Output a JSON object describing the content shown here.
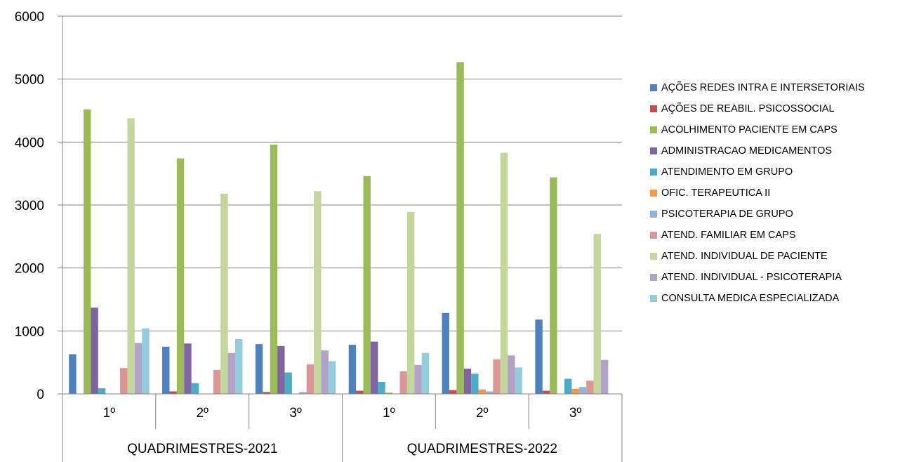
{
  "chart_data": {
    "type": "bar",
    "ylim": [
      0,
      6000
    ],
    "yticks": [
      "0",
      "1000",
      "2000",
      "3000",
      "4000",
      "5000",
      "6000"
    ],
    "grid": true,
    "legend_position": "right",
    "groups": [
      {
        "label": "QUADRIMESTRES-2021",
        "categories": [
          "1º",
          "2º",
          "3º"
        ]
      },
      {
        "label": "QUADRIMESTRES-2022",
        "categories": [
          "1º",
          "2º",
          "3º"
        ]
      }
    ],
    "series": [
      {
        "name": "AÇÕES REDES INTRA E INTERSETORIAIS",
        "color": "#4F81BD",
        "values": [
          630,
          750,
          790,
          780,
          1285,
          1180
        ]
      },
      {
        "name": "AÇÕES DE REABIL. PSICOSSOCIAL",
        "color": "#C0504D",
        "values": [
          0,
          40,
          30,
          50,
          60,
          50
        ]
      },
      {
        "name": "ACOLHIMENTO PACIENTE EM CAPS",
        "color": "#9BBB59",
        "values": [
          4520,
          3740,
          3960,
          3460,
          5270,
          3440
        ]
      },
      {
        "name": "ADMINISTRACAO MEDICAMENTOS",
        "color": "#8064A2",
        "values": [
          1370,
          800,
          760,
          830,
          400,
          0
        ]
      },
      {
        "name": "ATENDIMENTO EM GRUPO",
        "color": "#4BACC6",
        "values": [
          90,
          170,
          340,
          190,
          320,
          240
        ]
      },
      {
        "name": "OFIC. TERAPEUTICA II",
        "color": "#F79646",
        "values": [
          0,
          0,
          0,
          20,
          70,
          80
        ]
      },
      {
        "name": "PSICOTERAPIA DE GRUPO",
        "color": "#95B3D7",
        "values": [
          0,
          0,
          30,
          0,
          40,
          110
        ]
      },
      {
        "name": "ATEND. FAMILIAR EM CAPS",
        "color": "#DA9694",
        "values": [
          410,
          380,
          470,
          360,
          550,
          210
        ]
      },
      {
        "name": "ATEND. INDIVIDUAL DE PACIENTE",
        "color": "#C3D69B",
        "values": [
          4380,
          3180,
          3220,
          2890,
          3830,
          2540
        ]
      },
      {
        "name": "ATEND. INDIVIDUAL - PSICOTERAPIA",
        "color": "#B2A2C7",
        "values": [
          810,
          650,
          690,
          460,
          610,
          540
        ]
      },
      {
        "name": "CONSULTA MEDICA ESPECIALIZADA",
        "color": "#93CDDD",
        "values": [
          1040,
          870,
          520,
          650,
          420,
          0
        ]
      }
    ]
  }
}
